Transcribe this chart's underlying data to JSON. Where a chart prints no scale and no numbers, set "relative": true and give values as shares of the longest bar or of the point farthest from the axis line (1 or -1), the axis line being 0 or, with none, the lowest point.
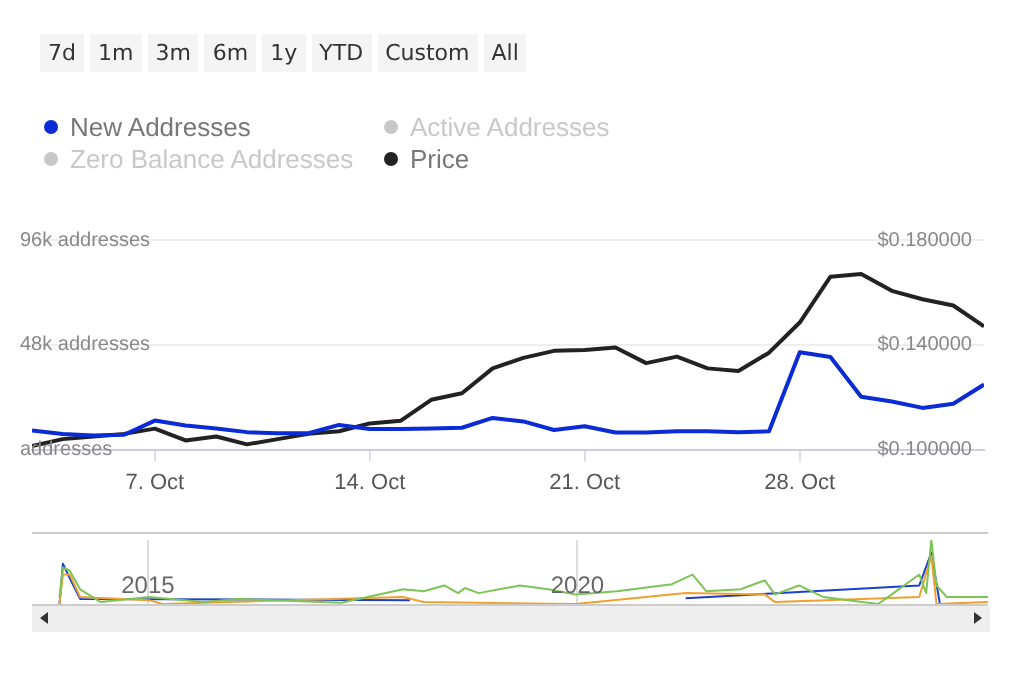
{
  "chart_data": [
    {
      "type": "line",
      "annotations": [
        "7d",
        "1m",
        "3m",
        "6m",
        "1y",
        "YTD",
        "Custom",
        "All"
      ],
      "x": [
        "--10-03",
        "--10-04",
        "--10-05",
        "--10-06",
        "--10-07",
        "--10-08",
        "--10-09",
        "--10-10",
        "--10-11",
        "--10-12",
        "--10-13",
        "--10-14",
        "--10-15",
        "--10-16",
        "--10-17",
        "--10-18",
        "--10-19",
        "--10-20",
        "--10-21",
        "--10-22",
        "--10-23",
        "--10-24",
        "--10-25",
        "--10-26",
        "--10-27",
        "--10-28",
        "--10-29",
        "--10-30",
        "--10-31",
        "--11-01",
        "--11-02",
        "--11-03"
      ],
      "series": [
        {
          "name": "New Addresses",
          "color": "#0a2bd6",
          "values": [
            8700,
            7100,
            6500,
            6800,
            13300,
            11000,
            9700,
            8000,
            7500,
            7500,
            11300,
            9400,
            9400,
            9700,
            10000,
            14500,
            12900,
            9000,
            10700,
            7800,
            7800,
            8400,
            8400,
            8000,
            8400,
            44600,
            42400,
            24200,
            22000,
            19100,
            21000,
            29800
          ]
        },
        {
          "name": "Active Addresses",
          "color": "#c8c8c8",
          "values": [
            null,
            null,
            null,
            null,
            null,
            null,
            null,
            null,
            null,
            null,
            null,
            null,
            null,
            null,
            null,
            null,
            null,
            null,
            null,
            null,
            null,
            null,
            null,
            null,
            null,
            null,
            null,
            null,
            null,
            null,
            null,
            null
          ]
        },
        {
          "name": "Zero Balance Addresses",
          "color": "#c8c8c8",
          "values": [
            null,
            null,
            null,
            null,
            null,
            null,
            null,
            null,
            null,
            null,
            null,
            null,
            null,
            null,
            null,
            null,
            null,
            null,
            null,
            null,
            null,
            null,
            null,
            null,
            null,
            null,
            null,
            null,
            null,
            null,
            null,
            null
          ]
        },
        {
          "name": "Price",
          "color": "#222222",
          "axis": "y2",
          "values": [
            0.1014,
            0.104,
            0.105,
            0.106,
            0.108,
            0.1035,
            0.105,
            0.102,
            0.104,
            0.106,
            0.107,
            0.11,
            0.111,
            0.119,
            0.1215,
            0.131,
            0.135,
            0.1377,
            0.138,
            0.139,
            0.133,
            0.1355,
            0.131,
            0.13,
            0.137,
            0.1485,
            0.166,
            0.167,
            0.1606,
            0.1574,
            0.155,
            0.147
          ]
        }
      ],
      "xlim": [
        "--10-03",
        "--11-03"
      ],
      "xticks": [
        {
          "value": "--10-07",
          "label": "7. Oct"
        },
        {
          "value": "--10-14",
          "label": "14. Oct"
        },
        {
          "value": "--10-21",
          "label": "21. Oct"
        },
        {
          "value": "--10-28",
          "label": "28. Oct"
        }
      ],
      "ylim": [
        0,
        96000
      ],
      "yticks": [
        {
          "value": 0,
          "label": "addresses"
        },
        {
          "value": 48000,
          "label": "48k addresses"
        },
        {
          "value": 96000,
          "label": "96k addresses"
        }
      ],
      "y2lim": [
        0.1,
        0.18
      ],
      "y2ticks": [
        {
          "value": 0.1,
          "label": "$0.100000"
        },
        {
          "value": 0.14,
          "label": "$0.140000"
        },
        {
          "value": 0.18,
          "label": "$0.180000"
        }
      ],
      "grid": "y",
      "legend": "top left",
      "marker": "none",
      "line_style": "solid"
    },
    {
      "type": "line",
      "relative": true,
      "tick_labels": "x",
      "grid": "x",
      "legend": false,
      "marker": "none",
      "xlim": [
        2013.65,
        2024.78
      ],
      "xticks": [
        2015,
        2020
      ],
      "series": [
        {
          "color": "#7cc456",
          "x": [
            2013.97,
            2014.01,
            2014.09,
            2014.21,
            2014.45,
            2015.01,
            2015.65,
            2016.05,
            2017.25,
            2017.97,
            2018.21,
            2018.45,
            2018.61,
            2018.69,
            2018.85,
            2019.33,
            2019.66,
            2019.98,
            2020.46,
            2021.1,
            2021.34,
            2021.5,
            2021.9,
            2022.18,
            2022.3,
            2022.58,
            2022.86,
            2023.5,
            2023.66,
            2023.98,
            2024.06,
            2024.12,
            2024.18,
            2024.3,
            2024.78
          ],
          "values": [
            0.11,
            0.57,
            0.52,
            0.23,
            0.03,
            0.11,
            0.03,
            0.08,
            0.02,
            0.23,
            0.2,
            0.29,
            0.17,
            0.25,
            0.17,
            0.29,
            0.23,
            0.15,
            0.2,
            0.31,
            0.46,
            0.2,
            0.23,
            0.37,
            0.15,
            0.29,
            0.11,
            0,
            0.15,
            0.46,
            0.17,
            1,
            0.29,
            0.11,
            0.11
          ]
        },
        {
          "color": "#f0a030",
          "x": [
            2013.97,
            2014.01,
            2014.09,
            2014.21,
            2015.01,
            2015.17,
            2017.97,
            2018.21,
            2019.98,
            2021.26,
            2022.18,
            2022.3,
            2023.98,
            2024.12,
            2024.18,
            2024.78
          ],
          "values": [
            0,
            0.46,
            0.46,
            0.11,
            0.06,
            0,
            0.11,
            0.03,
            0,
            0.17,
            0.15,
            0.03,
            0.11,
            0.75,
            0,
            0.03
          ]
        },
        {
          "color": "#1a3fd0",
          "x": [
            2013.97,
            2014.01,
            2014.09,
            2014.21,
            2018.05,
            2018.85,
            2021.26,
            2023.98,
            2024.12,
            2024.22
          ],
          "values": [
            0,
            0.63,
            0.4,
            0.08,
            0.06,
            null,
            0.09,
            0.29,
            0.8,
            0
          ]
        }
      ]
    }
  ]
}
